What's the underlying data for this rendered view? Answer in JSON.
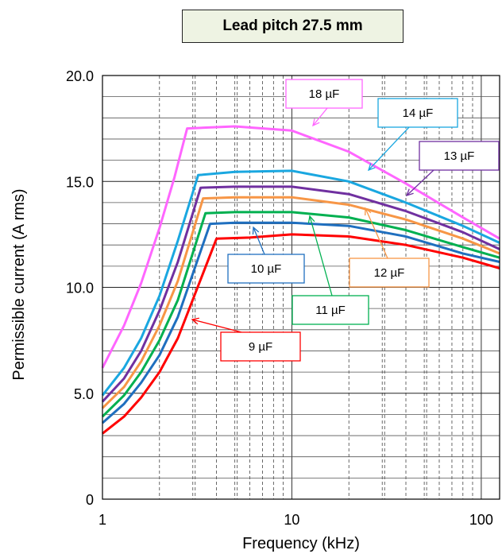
{
  "chart_data": {
    "type": "line",
    "title": "Lead pitch 27.5 mm",
    "xlabel": "Frequency (kHz)",
    "ylabel": "Permissible current  (A rms)",
    "xscale": "log",
    "xlim": [
      1,
      125
    ],
    "ylim": [
      0,
      20
    ],
    "xticks": [
      1,
      10,
      100
    ],
    "xtick_labels": [
      "1",
      "10",
      "100"
    ],
    "yticks": [
      0,
      5,
      10,
      15,
      20
    ],
    "ytick_labels": [
      "0",
      "5.0",
      "10.0",
      "15.0",
      "20.0"
    ],
    "grid": true,
    "series": [
      {
        "name": "18 µF",
        "color": "#ff66ff",
        "x": [
          1,
          1.3,
          1.6,
          2.0,
          2.4,
          2.8,
          5,
          10,
          20,
          40,
          80,
          125
        ],
        "y": [
          6.2,
          8.2,
          10.2,
          12.8,
          15.2,
          17.5,
          17.6,
          17.4,
          16.4,
          14.9,
          13.3,
          12.3
        ]
      },
      {
        "name": "14 µF",
        "color": "#1aa7e0",
        "x": [
          1,
          1.3,
          1.6,
          2.0,
          2.5,
          3.2,
          5,
          10,
          20,
          40,
          80,
          125
        ],
        "y": [
          4.9,
          6.2,
          7.6,
          9.6,
          12.2,
          15.3,
          15.45,
          15.5,
          15.0,
          14.0,
          12.9,
          12.1
        ]
      },
      {
        "name": "13 µF",
        "color": "#7030a0",
        "x": [
          1,
          1.3,
          1.6,
          2.0,
          2.5,
          3.3,
          5,
          10,
          20,
          40,
          80,
          125
        ],
        "y": [
          4.6,
          5.7,
          7.0,
          8.9,
          11.2,
          14.7,
          14.75,
          14.75,
          14.4,
          13.6,
          12.6,
          11.8
        ]
      },
      {
        "name": "12 µF",
        "color": "#f79646",
        "x": [
          1,
          1.3,
          1.6,
          2.0,
          2.5,
          3.4,
          5,
          10,
          20,
          40,
          80,
          125
        ],
        "y": [
          4.3,
          5.3,
          6.5,
          8.2,
          10.3,
          14.2,
          14.25,
          14.25,
          13.9,
          13.2,
          12.3,
          11.6
        ]
      },
      {
        "name": "11 µF",
        "color": "#00b050",
        "x": [
          1,
          1.3,
          1.6,
          2.0,
          2.5,
          3.5,
          5,
          10,
          20,
          40,
          80,
          125
        ],
        "y": [
          3.9,
          4.9,
          6.0,
          7.5,
          9.4,
          13.5,
          13.55,
          13.55,
          13.3,
          12.7,
          11.9,
          11.4
        ]
      },
      {
        "name": "10 µF",
        "color": "#1f6fbf",
        "x": [
          1,
          1.3,
          1.6,
          2.0,
          2.5,
          3.7,
          5,
          10,
          20,
          40,
          80,
          125
        ],
        "y": [
          3.6,
          4.5,
          5.5,
          6.8,
          8.6,
          13.0,
          13.05,
          13.05,
          12.9,
          12.4,
          11.6,
          11.2
        ]
      },
      {
        "name": "9 µF",
        "color": "#ff0000",
        "x": [
          1,
          1.3,
          1.6,
          2.0,
          2.5,
          4.0,
          6,
          10,
          20,
          40,
          80,
          125
        ],
        "y": [
          3.1,
          3.9,
          4.8,
          6.0,
          7.6,
          12.3,
          12.35,
          12.5,
          12.4,
          12.0,
          11.4,
          10.9
        ]
      }
    ],
    "annotations": [
      {
        "text": "18 µF",
        "color": "#ff66ff"
      },
      {
        "text": "14 µF",
        "color": "#1aa7e0"
      },
      {
        "text": "13 µF",
        "color": "#7030a0"
      },
      {
        "text": "12 µF",
        "color": "#f79646"
      },
      {
        "text": "11 µF",
        "color": "#00b050"
      },
      {
        "text": "10 µF",
        "color": "#1f6fbf"
      },
      {
        "text": "9 µF",
        "color": "#ff0000"
      }
    ]
  }
}
